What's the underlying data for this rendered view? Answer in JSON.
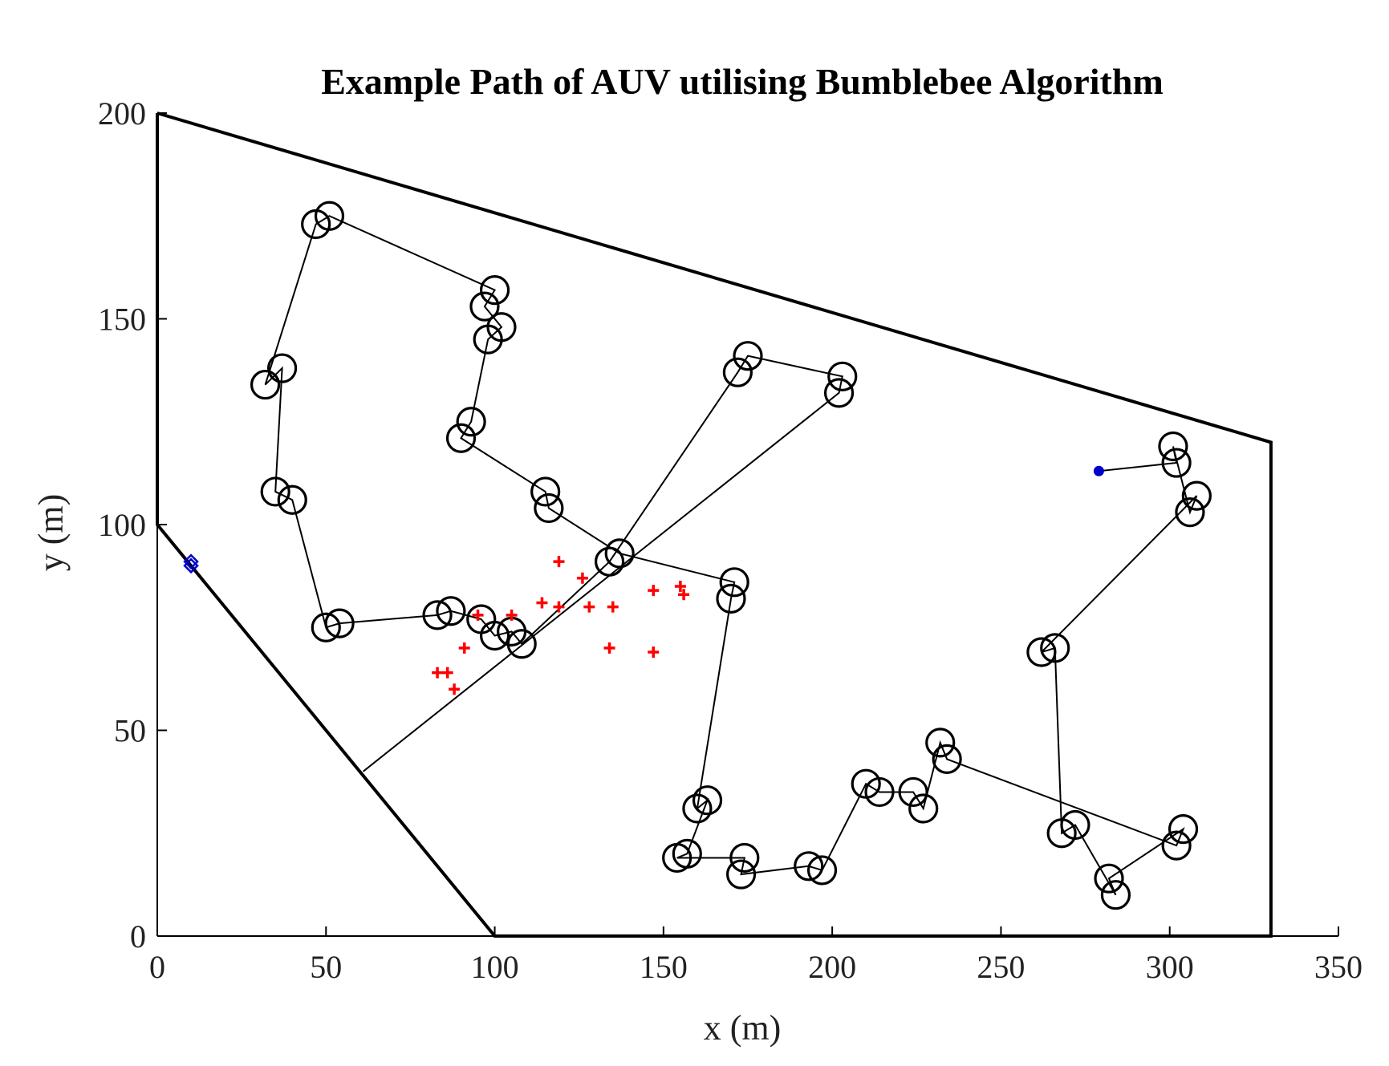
{
  "chart_data": {
    "type": "scatter",
    "title": "Example Path of AUV utilising Bumblebee Algorithm",
    "xlabel": "x (m)",
    "ylabel": "y (m)",
    "xlim": [
      0,
      350
    ],
    "ylim": [
      0,
      200
    ],
    "xticks": [
      0,
      50,
      100,
      150,
      200,
      250,
      300,
      350
    ],
    "yticks": [
      0,
      50,
      100,
      150,
      200
    ],
    "grid": false,
    "legend": "none",
    "colors": {
      "boundary": "#000000",
      "path": "#000000",
      "markers": "#000000",
      "red_points": "#ff0000",
      "blue_points": "#0000cc"
    },
    "boundary": [
      [
        0,
        200
      ],
      [
        330,
        120
      ],
      [
        330,
        0
      ],
      [
        100,
        0
      ],
      [
        0,
        100
      ],
      [
        0,
        200
      ]
    ],
    "path": [
      [
        61,
        40
      ],
      [
        202,
        132
      ],
      [
        203,
        136
      ],
      [
        175,
        141
      ],
      [
        172,
        137
      ],
      [
        134,
        91
      ],
      [
        108,
        71
      ],
      [
        105,
        74
      ],
      [
        100,
        73
      ],
      [
        96,
        77
      ],
      [
        87,
        79
      ],
      [
        83,
        78
      ],
      [
        54,
        76
      ],
      [
        50,
        75
      ],
      [
        40,
        106
      ],
      [
        35,
        108
      ],
      [
        37,
        138
      ],
      [
        32,
        134
      ],
      [
        47,
        173
      ],
      [
        51,
        175
      ],
      [
        100,
        157
      ],
      [
        97,
        153
      ],
      [
        102,
        148
      ],
      [
        98,
        145
      ],
      [
        93,
        125
      ],
      [
        90,
        121
      ],
      [
        115,
        108
      ],
      [
        116,
        104
      ],
      [
        137,
        93
      ],
      [
        171,
        86
      ],
      [
        170,
        82
      ],
      [
        160,
        31
      ],
      [
        163,
        33
      ],
      [
        157,
        20
      ],
      [
        154,
        19
      ],
      [
        174,
        19
      ],
      [
        173,
        15
      ],
      [
        193,
        17
      ],
      [
        197,
        16
      ],
      [
        210,
        37
      ],
      [
        214,
        35
      ],
      [
        224,
        35
      ],
      [
        227,
        31
      ],
      [
        232,
        47
      ],
      [
        234,
        43
      ],
      [
        302,
        22
      ],
      [
        304,
        26
      ],
      [
        282,
        14
      ],
      [
        284,
        10
      ],
      [
        272,
        27
      ],
      [
        268,
        25
      ],
      [
        266,
        70
      ],
      [
        262,
        69
      ],
      [
        308,
        107
      ],
      [
        306,
        103
      ],
      [
        301,
        119
      ],
      [
        302,
        115
      ],
      [
        279,
        113
      ]
    ],
    "circles": [
      [
        202,
        132
      ],
      [
        203,
        136
      ],
      [
        175,
        141
      ],
      [
        172,
        137
      ],
      [
        134,
        91
      ],
      [
        108,
        71
      ],
      [
        105,
        74
      ],
      [
        100,
        73
      ],
      [
        96,
        77
      ],
      [
        87,
        79
      ],
      [
        83,
        78
      ],
      [
        54,
        76
      ],
      [
        50,
        75
      ],
      [
        40,
        106
      ],
      [
        35,
        108
      ],
      [
        37,
        138
      ],
      [
        32,
        134
      ],
      [
        47,
        173
      ],
      [
        51,
        175
      ],
      [
        100,
        157
      ],
      [
        97,
        153
      ],
      [
        102,
        148
      ],
      [
        98,
        145
      ],
      [
        93,
        125
      ],
      [
        90,
        121
      ],
      [
        115,
        108
      ],
      [
        116,
        104
      ],
      [
        137,
        93
      ],
      [
        171,
        86
      ],
      [
        170,
        82
      ],
      [
        160,
        31
      ],
      [
        163,
        33
      ],
      [
        157,
        20
      ],
      [
        154,
        19
      ],
      [
        174,
        19
      ],
      [
        173,
        15
      ],
      [
        193,
        17
      ],
      [
        197,
        16
      ],
      [
        210,
        37
      ],
      [
        214,
        35
      ],
      [
        224,
        35
      ],
      [
        227,
        31
      ],
      [
        232,
        47
      ],
      [
        234,
        43
      ],
      [
        302,
        22
      ],
      [
        304,
        26
      ],
      [
        282,
        14
      ],
      [
        284,
        10
      ],
      [
        272,
        27
      ],
      [
        268,
        25
      ],
      [
        266,
        70
      ],
      [
        262,
        69
      ],
      [
        308,
        107
      ],
      [
        306,
        103
      ],
      [
        301,
        119
      ],
      [
        302,
        115
      ]
    ],
    "red_points": [
      [
        119,
        91
      ],
      [
        126,
        87
      ],
      [
        114,
        81
      ],
      [
        119,
        80
      ],
      [
        128,
        80
      ],
      [
        135,
        80
      ],
      [
        147,
        84
      ],
      [
        155,
        85
      ],
      [
        156,
        83
      ],
      [
        95,
        78
      ],
      [
        105,
        78
      ],
      [
        91,
        70
      ],
      [
        134,
        70
      ],
      [
        147,
        69
      ],
      [
        83,
        64
      ],
      [
        86,
        64
      ],
      [
        88,
        60
      ]
    ],
    "blue_points": [
      [
        279,
        113
      ],
      [
        10,
        91
      ],
      [
        10,
        90
      ]
    ]
  }
}
